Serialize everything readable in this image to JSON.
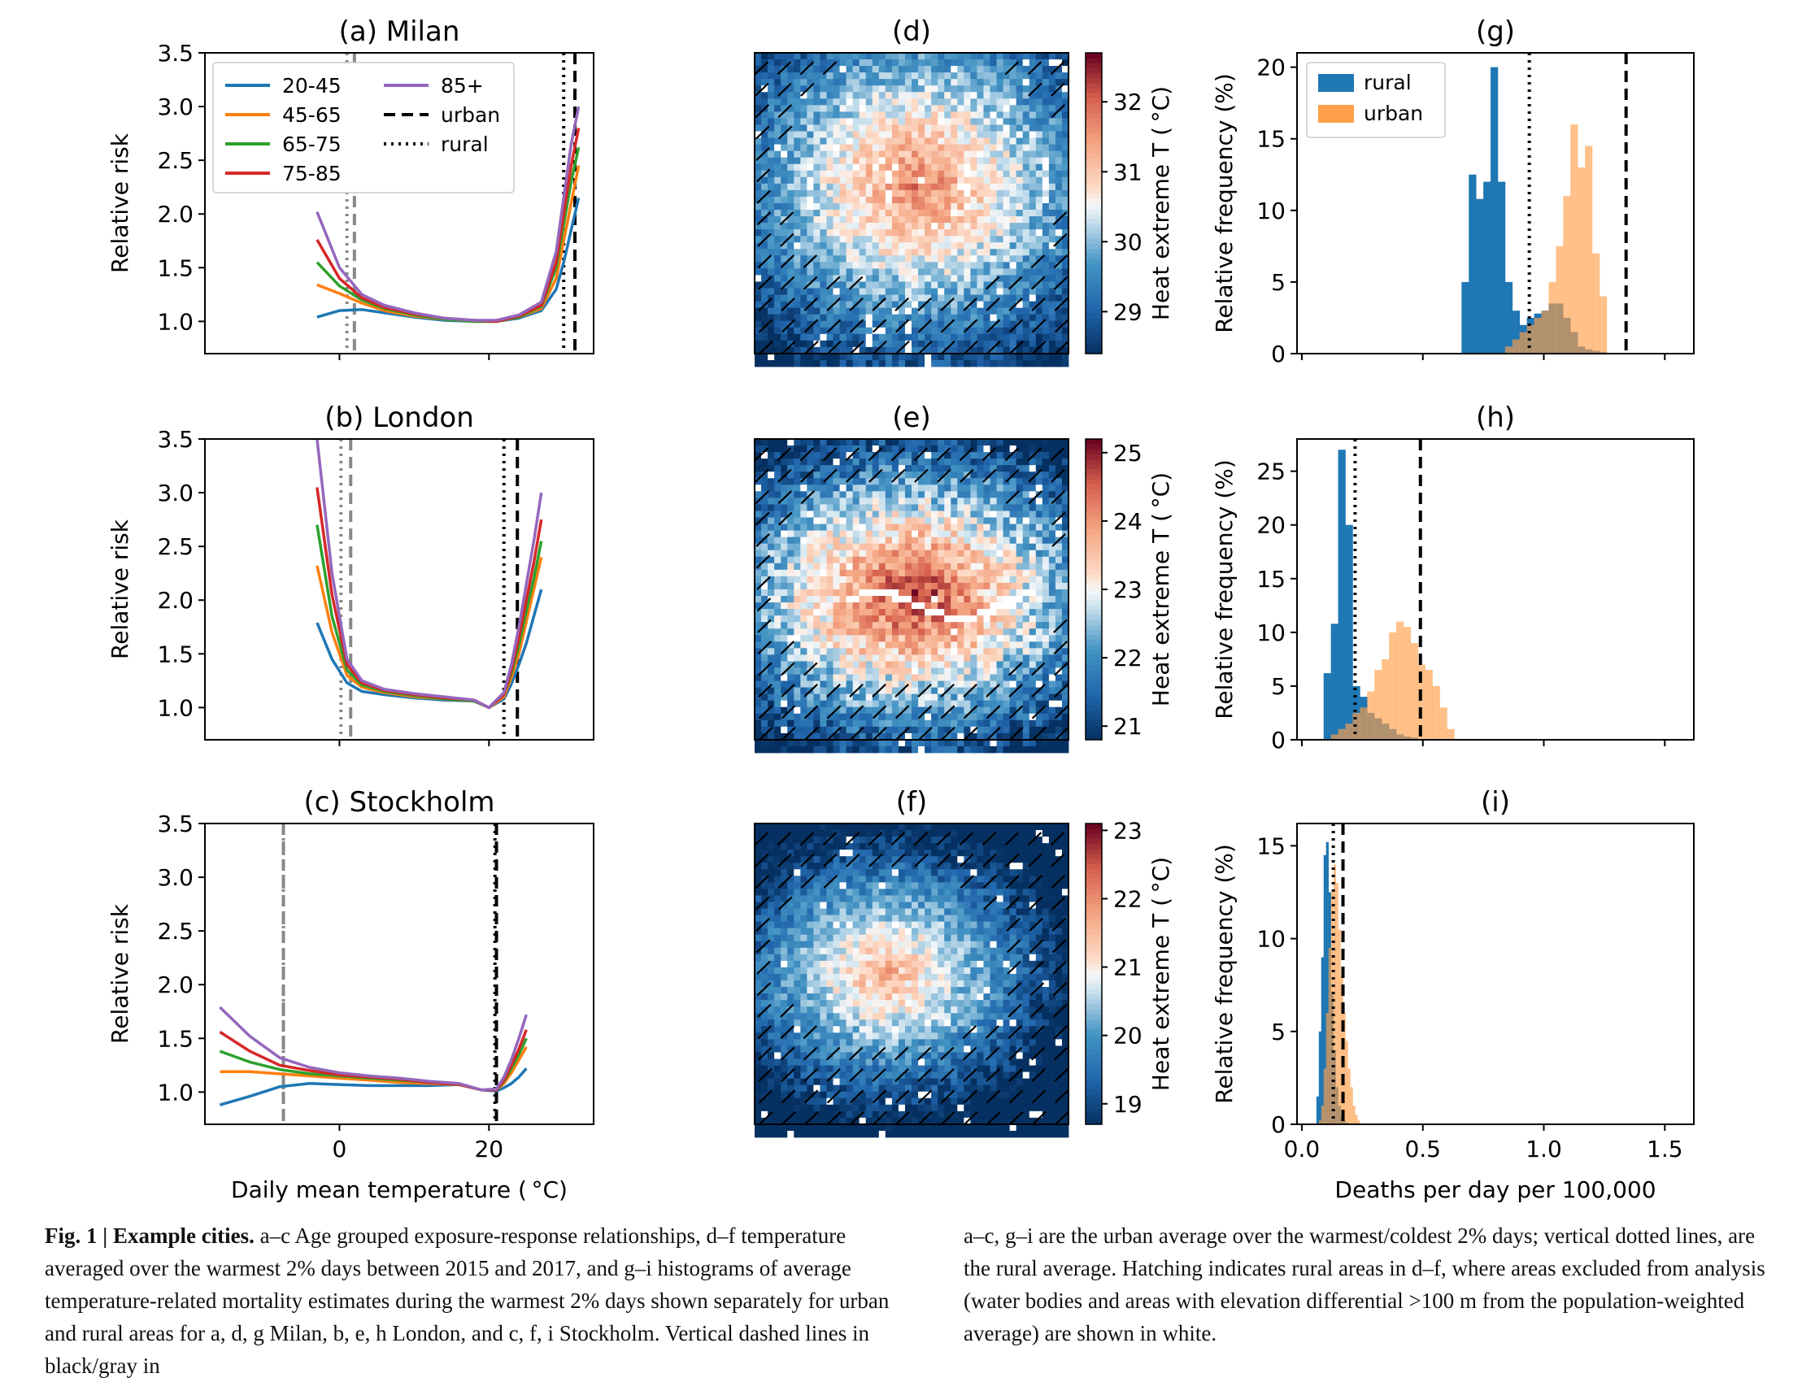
{
  "colors": {
    "20-45": "#1f77b4",
    "45-65": "#ff7f0e",
    "65-75": "#2ca02c",
    "75-85": "#d62728",
    "85+": "#9467bd",
    "rural_hist": "#1f77b4",
    "urban_hist": "#ff9f4a",
    "dashed_gray": "#888888"
  },
  "chart_data": [
    {
      "type": "line",
      "panel": "a",
      "title": "(a) Milan",
      "ylabel": "Relative risk",
      "xlabel": "",
      "xlim": [
        -18,
        34
      ],
      "ylim": [
        0.7,
        3.5
      ],
      "yticks": [
        "1.0",
        "1.5",
        "2.0",
        "2.5",
        "3.0",
        "3.5"
      ],
      "xticks": [
        0,
        20
      ],
      "legend": {
        "placement": "top-left",
        "entries": [
          "20-45",
          "45-65",
          "65-75",
          "75-85",
          "85+",
          "urban",
          "rural"
        ]
      },
      "x": [
        -3,
        0,
        3,
        6,
        10,
        14,
        18,
        21,
        24,
        27,
        29,
        30,
        31,
        32
      ],
      "series": [
        {
          "name": "20-45",
          "values": [
            1.04,
            1.1,
            1.11,
            1.08,
            1.04,
            1.01,
            1.0,
            1.0,
            1.03,
            1.1,
            1.3,
            1.55,
            1.85,
            2.15
          ]
        },
        {
          "name": "45-65",
          "values": [
            1.34,
            1.26,
            1.17,
            1.1,
            1.05,
            1.02,
            1.0,
            1.0,
            1.04,
            1.12,
            1.4,
            1.75,
            2.1,
            2.45
          ]
        },
        {
          "name": "65-75",
          "values": [
            1.55,
            1.33,
            1.2,
            1.12,
            1.06,
            1.02,
            1.0,
            1.0,
            1.04,
            1.14,
            1.5,
            1.9,
            2.3,
            2.62
          ]
        },
        {
          "name": "75-85",
          "values": [
            1.76,
            1.4,
            1.22,
            1.13,
            1.07,
            1.03,
            1.01,
            1.0,
            1.05,
            1.15,
            1.55,
            2.0,
            2.45,
            2.8
          ]
        },
        {
          "name": "85+",
          "values": [
            2.02,
            1.5,
            1.25,
            1.15,
            1.08,
            1.03,
            1.01,
            1.01,
            1.06,
            1.18,
            1.65,
            2.15,
            2.65,
            3.0
          ]
        }
      ],
      "vlines": {
        "urban_cold": 2.0,
        "rural_cold": 1.0,
        "urban_hot": 31.5,
        "rural_hot": 30.0
      }
    },
    {
      "type": "line",
      "panel": "b",
      "title": "(b) London",
      "ylabel": "Relative risk",
      "xlabel": "",
      "xlim": [
        -18,
        34
      ],
      "ylim": [
        0.7,
        3.5
      ],
      "yticks": [
        "1.0",
        "1.5",
        "2.0",
        "2.5",
        "3.0",
        "3.5"
      ],
      "xticks": [
        0,
        20
      ],
      "x": [
        -3,
        -1,
        1,
        3,
        6,
        10,
        14,
        18,
        20,
        22,
        23,
        24,
        25,
        26,
        27
      ],
      "series": [
        {
          "name": "20-45",
          "values": [
            1.79,
            1.45,
            1.23,
            1.15,
            1.12,
            1.09,
            1.07,
            1.06,
            1.0,
            1.08,
            1.22,
            1.4,
            1.6,
            1.85,
            2.1
          ]
        },
        {
          "name": "45-65",
          "values": [
            2.32,
            1.7,
            1.3,
            1.19,
            1.14,
            1.1,
            1.08,
            1.06,
            1.0,
            1.1,
            1.28,
            1.5,
            1.8,
            2.1,
            2.4
          ]
        },
        {
          "name": "65-75",
          "values": [
            2.7,
            1.85,
            1.35,
            1.21,
            1.15,
            1.11,
            1.08,
            1.06,
            1.0,
            1.12,
            1.32,
            1.58,
            1.9,
            2.2,
            2.55
          ]
        },
        {
          "name": "75-85",
          "values": [
            3.05,
            2.05,
            1.4,
            1.23,
            1.16,
            1.12,
            1.09,
            1.07,
            1.0,
            1.12,
            1.35,
            1.65,
            2.0,
            2.35,
            2.75
          ]
        },
        {
          "name": "85+",
          "values": [
            3.5,
            2.25,
            1.45,
            1.25,
            1.17,
            1.13,
            1.1,
            1.07,
            1.0,
            1.14,
            1.4,
            1.75,
            2.15,
            2.55,
            3.0
          ]
        }
      ],
      "vlines": {
        "urban_cold": 1.5,
        "rural_cold": 0.2,
        "urban_hot": 23.8,
        "rural_hot": 22.0
      }
    },
    {
      "type": "line",
      "panel": "c",
      "title": "(c) Stockholm",
      "ylabel": "Relative risk",
      "xlabel": "Daily mean temperature ($^\\circ$C)",
      "xlim": [
        -18,
        34
      ],
      "ylim": [
        0.7,
        3.5
      ],
      "yticks": [
        "1.0",
        "1.5",
        "2.0",
        "2.5",
        "3.0",
        "3.5"
      ],
      "xticks": [
        0,
        20
      ],
      "x": [
        -16,
        -12,
        -8,
        -4,
        0,
        4,
        8,
        12,
        16,
        19,
        21,
        22,
        23,
        24,
        25
      ],
      "series": [
        {
          "name": "20-45",
          "values": [
            0.88,
            0.96,
            1.05,
            1.08,
            1.07,
            1.06,
            1.06,
            1.06,
            1.07,
            1.02,
            1.01,
            1.04,
            1.08,
            1.14,
            1.22
          ]
        },
        {
          "name": "45-65",
          "values": [
            1.19,
            1.19,
            1.17,
            1.15,
            1.13,
            1.11,
            1.09,
            1.08,
            1.07,
            1.02,
            1.02,
            1.08,
            1.18,
            1.3,
            1.42
          ]
        },
        {
          "name": "65-75",
          "values": [
            1.38,
            1.28,
            1.21,
            1.17,
            1.15,
            1.13,
            1.11,
            1.09,
            1.07,
            1.02,
            1.02,
            1.1,
            1.22,
            1.35,
            1.5
          ]
        },
        {
          "name": "75-85",
          "values": [
            1.56,
            1.38,
            1.25,
            1.2,
            1.16,
            1.14,
            1.12,
            1.09,
            1.07,
            1.02,
            1.02,
            1.11,
            1.25,
            1.4,
            1.58
          ]
        },
        {
          "name": "85+",
          "values": [
            1.79,
            1.52,
            1.32,
            1.23,
            1.18,
            1.15,
            1.13,
            1.1,
            1.08,
            1.02,
            1.03,
            1.14,
            1.3,
            1.5,
            1.72
          ]
        }
      ],
      "vlines": {
        "urban_cold": -7.5,
        "rural_cold": -7.5,
        "urban_hot": 21.0,
        "rural_hot": 20.8
      }
    },
    {
      "type": "heatmap",
      "panel": "d",
      "title": "(d)",
      "colorbar_label": "Heat extreme T ($^\\circ$C)",
      "color_range": [
        28.4,
        32.7
      ],
      "colorbar_ticks": [
        29,
        30,
        31,
        32
      ],
      "pattern": {
        "center": [
          0.52,
          0.42
        ],
        "spread": [
          0.42,
          0.38
        ],
        "diag": 0.15,
        "seed": 11,
        "waterRiver": 0
      }
    },
    {
      "type": "heatmap",
      "panel": "e",
      "title": "(e)",
      "colorbar_label": "Heat extreme T ($^\\circ$C)",
      "color_range": [
        20.8,
        25.2
      ],
      "colorbar_ticks": [
        21,
        22,
        23,
        24,
        25
      ],
      "pattern": {
        "center": [
          0.5,
          0.5
        ],
        "spread": [
          0.45,
          0.33
        ],
        "diag": 0.0,
        "seed": 23,
        "waterRiver": 1
      }
    },
    {
      "type": "heatmap",
      "panel": "f",
      "title": "(f)",
      "colorbar_label": "Heat extreme T ($^\\circ$C)",
      "color_range": [
        18.7,
        23.1
      ],
      "colorbar_ticks": [
        19,
        20,
        21,
        22,
        23
      ],
      "pattern": {
        "center": [
          0.42,
          0.48
        ],
        "spread": [
          0.35,
          0.28
        ],
        "diag": 0.1,
        "seed": 37,
        "waterRiver": 0
      }
    },
    {
      "type": "bar",
      "panel": "g",
      "title": "(g)",
      "ylabel": "Relative frequency (%)",
      "xlabel": "",
      "xlim": [
        -0.02,
        1.62
      ],
      "ylim": [
        0,
        21
      ],
      "yticks": [
        0,
        5,
        10,
        15,
        20
      ],
      "xticks": [
        0.0,
        0.5,
        1.0,
        1.5
      ],
      "legend": {
        "placement": "top-left",
        "entries": [
          "rural",
          "urban"
        ]
      },
      "bins_start": 0.66,
      "bin_width": 0.03,
      "rural": [
        5.0,
        12.5,
        10.8,
        12.0,
        20.0,
        12.0,
        5.0,
        3.0,
        2.0,
        2.5,
        2.8,
        3.0,
        3.5,
        3.5,
        2.5,
        1.5,
        0.5,
        0.3,
        0.2,
        0.1
      ],
      "urban": [
        0,
        0,
        0,
        0,
        0,
        0,
        0.5,
        1.0,
        1.5,
        2.0,
        2.5,
        3.0,
        5.0,
        7.5,
        11.0,
        16.0,
        13.0,
        14.5,
        7.0,
        4.0
      ],
      "vlines": {
        "rural_mean": 0.94,
        "urban_mean": 1.34
      }
    },
    {
      "type": "bar",
      "panel": "h",
      "title": "(h)",
      "ylabel": "Relative frequency (%)",
      "xlabel": "",
      "xlim": [
        -0.02,
        1.62
      ],
      "ylim": [
        0,
        28
      ],
      "yticks": [
        0,
        5,
        10,
        15,
        20,
        25
      ],
      "xticks": [
        0.0,
        0.5,
        1.0,
        1.5
      ],
      "bins_start": 0.09,
      "bin_width": 0.03,
      "rural": [
        6.2,
        10.8,
        27.0,
        20.0,
        5.0,
        4.0,
        2.5,
        2.0,
        1.5,
        1.0,
        0.5,
        0.3,
        0.2,
        0,
        0,
        0,
        0,
        0,
        0,
        0
      ],
      "urban": [
        0,
        0.5,
        1.0,
        1.5,
        2.5,
        3.0,
        4.5,
        6.5,
        7.5,
        10.0,
        11.0,
        10.5,
        9.0,
        7.0,
        6.5,
        5.0,
        3.0,
        1.0,
        0,
        0
      ],
      "vlines": {
        "rural_mean": 0.22,
        "urban_mean": 0.49
      }
    },
    {
      "type": "bar",
      "panel": "i",
      "title": "(i)",
      "ylabel": "Relative frequency (%)",
      "xlabel": "Deaths per day per 100,000",
      "xlim": [
        -0.02,
        1.62
      ],
      "ylim": [
        0,
        16.2
      ],
      "yticks": [
        0,
        5,
        10,
        15
      ],
      "xticks": [
        "0.0",
        "0.5",
        "1.0",
        "1.5"
      ],
      "bins_start": 0.06,
      "bin_width": 0.01,
      "rural": [
        1.5,
        5.0,
        9.0,
        14.5,
        15.2,
        12.5,
        7.0,
        4.0,
        2.0,
        1.0,
        0.5,
        0.2,
        0.1,
        0,
        0,
        0,
        0,
        0,
        0,
        0
      ],
      "urban": [
        0,
        0.2,
        1.0,
        3.0,
        6.0,
        9.5,
        12.5,
        14.0,
        13.0,
        10.5,
        8.0,
        6.0,
        4.5,
        3.0,
        2.0,
        1.0,
        0.5,
        0.2,
        0,
        0
      ],
      "vlines": {
        "rural_mean": 0.13,
        "urban_mean": 0.17
      }
    }
  ],
  "caption": {
    "left_heading": "Fig. 1 | Example cities. ",
    "left_text": "a–c Age grouped exposure-response relationships, d–f temperature averaged over the warmest 2% days between 2015 and 2017, and g–i histograms of average temperature-related mortality estimates during the warmest 2% days shown separately for urban and rural areas for a, d, g Milan, b, e, h London, and c, f, i Stockholm. Vertical dashed lines in black/gray in",
    "right_text": "a–c, g–i are the urban average over the warmest/coldest 2% days; vertical dotted lines, are the rural average. Hatching indicates rural areas in d–f, where areas excluded from analysis (water bodies and areas with elevation differential >100 m from the population-weighted average) are shown in white."
  }
}
